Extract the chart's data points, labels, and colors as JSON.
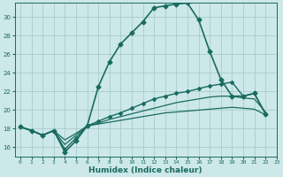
{
  "xlabel": "Humidex (Indice chaleur)",
  "background_color": "#cce8e8",
  "line_color": "#1a6b60",
  "grid_color": "#aacccc",
  "xlim": [
    -0.5,
    23
  ],
  "ylim": [
    15,
    31.5
  ],
  "yticks": [
    16,
    18,
    20,
    22,
    24,
    26,
    28,
    30
  ],
  "xticks": [
    0,
    1,
    2,
    3,
    4,
    5,
    6,
    7,
    8,
    9,
    10,
    11,
    12,
    13,
    14,
    15,
    16,
    17,
    18,
    19,
    20,
    21,
    22,
    23
  ],
  "lines": [
    {
      "x": [
        0,
        1,
        2,
        3,
        4,
        5,
        6,
        7,
        8,
        9,
        10,
        11,
        12,
        13,
        14,
        15,
        16,
        17,
        18,
        19,
        20,
        21,
        22
      ],
      "y": [
        18.2,
        17.8,
        17.3,
        17.8,
        15.5,
        16.7,
        18.3,
        22.5,
        25.2,
        27.1,
        28.3,
        29.5,
        31.0,
        31.2,
        31.4,
        31.5,
        29.7,
        26.3,
        23.3,
        21.5,
        21.5,
        21.8,
        19.6
      ],
      "marker": "D",
      "markersize": 2.5,
      "linewidth": 1.2,
      "zorder": 5
    },
    {
      "x": [
        0,
        1,
        2,
        3,
        4,
        5,
        6,
        7,
        8,
        9,
        10,
        11,
        12,
        13,
        14,
        15,
        16,
        17,
        18,
        19,
        20,
        21,
        22
      ],
      "y": [
        18.2,
        17.8,
        17.3,
        17.8,
        15.8,
        17.0,
        18.3,
        18.8,
        19.3,
        19.7,
        20.2,
        20.7,
        21.2,
        21.5,
        21.8,
        22.0,
        22.3,
        22.6,
        22.8,
        23.0,
        21.5,
        21.8,
        19.6
      ],
      "marker": "D",
      "markersize": 2.0,
      "linewidth": 1.0,
      "zorder": 4
    },
    {
      "x": [
        0,
        1,
        2,
        3,
        4,
        5,
        6,
        7,
        8,
        9,
        10,
        11,
        12,
        13,
        14,
        15,
        16,
        17,
        18,
        19,
        20,
        21,
        22
      ],
      "y": [
        18.2,
        17.8,
        17.3,
        17.8,
        16.3,
        17.3,
        18.3,
        18.6,
        19.0,
        19.3,
        19.6,
        19.9,
        20.2,
        20.5,
        20.8,
        21.0,
        21.2,
        21.4,
        21.5,
        21.5,
        21.3,
        21.2,
        19.8
      ],
      "marker": null,
      "markersize": 0,
      "linewidth": 0.9,
      "zorder": 3
    },
    {
      "x": [
        0,
        1,
        2,
        3,
        4,
        5,
        6,
        7,
        8,
        9,
        10,
        11,
        12,
        13,
        14,
        15,
        16,
        17,
        18,
        19,
        20,
        21,
        22
      ],
      "y": [
        18.2,
        17.8,
        17.3,
        17.8,
        16.8,
        17.5,
        18.3,
        18.5,
        18.7,
        18.9,
        19.1,
        19.3,
        19.5,
        19.7,
        19.8,
        19.9,
        20.0,
        20.1,
        20.2,
        20.3,
        20.2,
        20.1,
        19.5
      ],
      "marker": null,
      "markersize": 0,
      "linewidth": 0.9,
      "zorder": 2
    }
  ]
}
